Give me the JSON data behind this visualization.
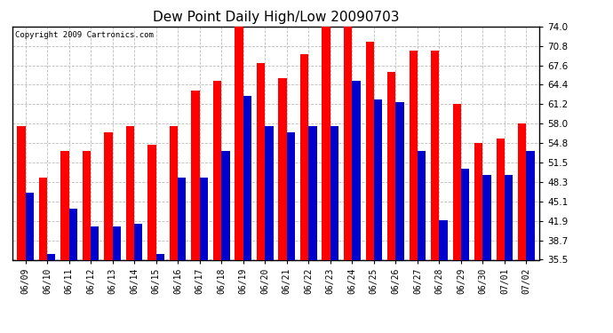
{
  "title": "Dew Point Daily High/Low 20090703",
  "copyright": "Copyright 2009 Cartronics.com",
  "dates": [
    "06/09",
    "06/10",
    "06/11",
    "06/12",
    "06/13",
    "06/14",
    "06/15",
    "06/16",
    "06/17",
    "06/18",
    "06/19",
    "06/20",
    "06/21",
    "06/22",
    "06/23",
    "06/24",
    "06/25",
    "06/26",
    "06/27",
    "06/28",
    "06/29",
    "06/30",
    "07/01",
    "07/02"
  ],
  "highs": [
    57.5,
    49.0,
    53.5,
    53.5,
    56.5,
    57.5,
    54.5,
    57.5,
    63.5,
    65.0,
    74.0,
    68.0,
    65.5,
    69.5,
    74.0,
    74.0,
    71.5,
    66.5,
    70.0,
    70.0,
    61.2,
    54.8,
    55.5,
    58.0
  ],
  "lows": [
    46.5,
    36.5,
    44.0,
    41.0,
    41.0,
    41.5,
    36.5,
    49.0,
    49.0,
    53.5,
    62.5,
    57.5,
    56.5,
    57.5,
    57.5,
    65.0,
    62.0,
    61.5,
    53.5,
    42.0,
    50.5,
    49.5,
    49.5,
    53.5
  ],
  "bar_width": 0.38,
  "high_color": "#ff0000",
  "low_color": "#0000cc",
  "bg_color": "#ffffff",
  "plot_bg_color": "#ffffff",
  "grid_color": "#bbbbbb",
  "title_fontsize": 11,
  "yticks": [
    35.5,
    38.7,
    41.9,
    45.1,
    48.3,
    51.5,
    54.8,
    58.0,
    61.2,
    64.4,
    67.6,
    70.8,
    74.0
  ],
  "ymin": 35.5,
  "ymax": 74.0
}
